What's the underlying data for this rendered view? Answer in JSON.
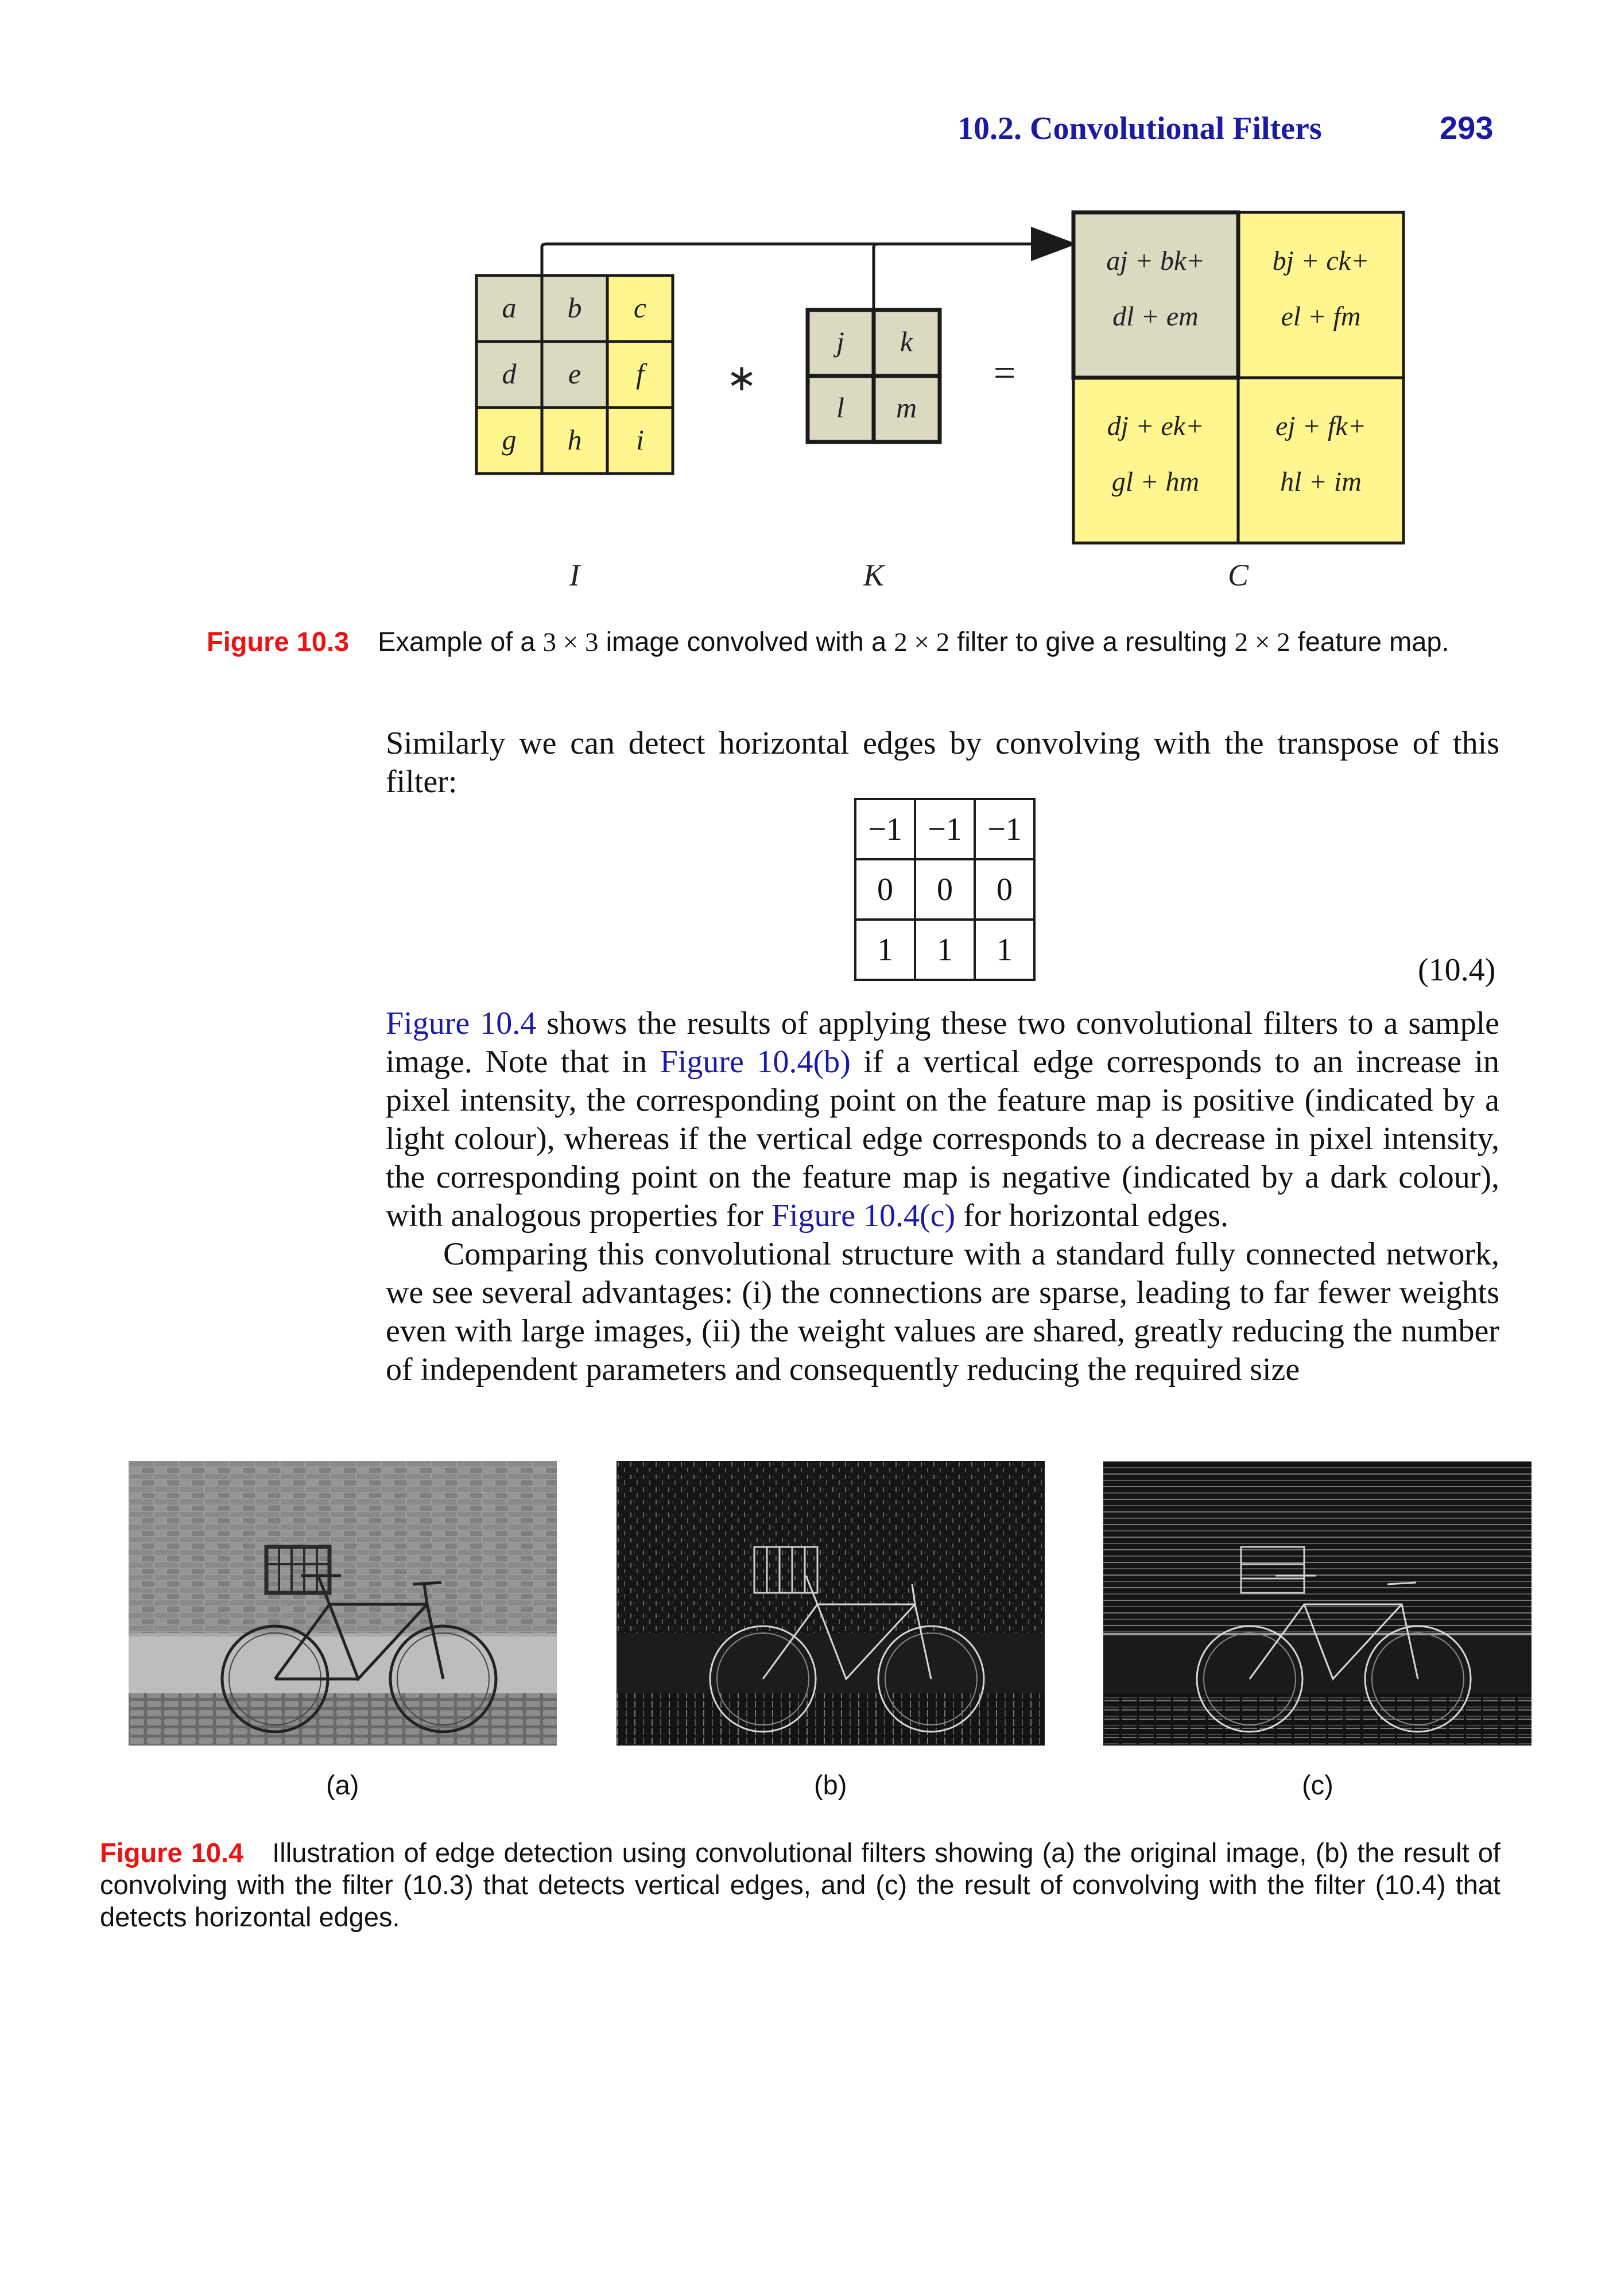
{
  "header": {
    "section": "10.2. Convolutional Filters",
    "page_number": "293"
  },
  "figure_10_3": {
    "matrix_I": {
      "label": "I",
      "cells": [
        "a",
        "b",
        "c",
        "d",
        "e",
        "f",
        "g",
        "h",
        "i"
      ]
    },
    "matrix_K": {
      "label": "K",
      "cells": [
        "j",
        "k",
        "l",
        "m"
      ]
    },
    "matrix_C": {
      "label": "C",
      "cells": [
        {
          "line1": "aj + bk+",
          "line2": "dl + em"
        },
        {
          "line1": "bj + ck+",
          "line2": "el + fm"
        },
        {
          "line1": "dj + ek+",
          "line2": "gl + hm"
        },
        {
          "line1": "ej + fk+",
          "line2": "hl + im"
        }
      ]
    },
    "operator_convolve": "∗",
    "operator_equals": "=",
    "caption_label": "Figure 10.3",
    "caption_parts": [
      "Example of a ",
      "3 × 3",
      " image convolved with a ",
      "2 × 2",
      " filter to give a resulting ",
      "2 × 2",
      " feature map."
    ],
    "colors": {
      "yellow": "#fff68f",
      "grey": "#dcd9c1",
      "border": "#1a1a1a"
    }
  },
  "text_block_1": {
    "paragraph": "Similarly we can detect horizontal edges by convolving with the transpose of this filter:"
  },
  "equation_10_4": {
    "rows": [
      [
        "−1",
        "−1",
        "−1"
      ],
      [
        "0",
        "0",
        "0"
      ],
      [
        "1",
        "1",
        "1"
      ]
    ],
    "number": "(10.4)"
  },
  "text_block_2": {
    "p1_parts": [
      {
        "t": "Figure 10.4",
        "link": true
      },
      {
        "t": " shows the results of applying these two convolutional filters to a sample image. Note that in ",
        "link": false
      },
      {
        "t": "Figure 10.4(b)",
        "link": true
      },
      {
        "t": " if a vertical edge corresponds to an increase in pixel intensity, the corresponding point on the feature map is positive (indicated by a light colour), whereas if the vertical edge corresponds to a decrease in pixel intensity, the corresponding point on the feature map is negative (indicated by a dark colour), with analogous properties for ",
        "link": false
      },
      {
        "t": "Figure 10.4(c)",
        "link": true
      },
      {
        "t": " for horizontal edges.",
        "link": false
      }
    ],
    "p2": "Comparing this convolutional structure with a standard fully connected network, we see several advantages: (i) the connections are sparse, leading to far fewer weights even with large images, (ii) the weight values are shared, greatly reducing the number of independent parameters and consequently reducing the required size"
  },
  "figure_10_4": {
    "panels": [
      {
        "label": "(a)",
        "description": "bicycle-photo-original"
      },
      {
        "label": "(b)",
        "description": "bicycle-vertical-edges"
      },
      {
        "label": "(c)",
        "description": "bicycle-horizontal-edges"
      }
    ],
    "caption_label": "Figure 10.4",
    "caption": "Illustration of edge detection using convolutional filters showing (a) the original image, (b) the result of convolving with the filter (10.3) that detects vertical edges, and (c) the result of convolving with the filter (10.4) that detects horizontal edges."
  }
}
